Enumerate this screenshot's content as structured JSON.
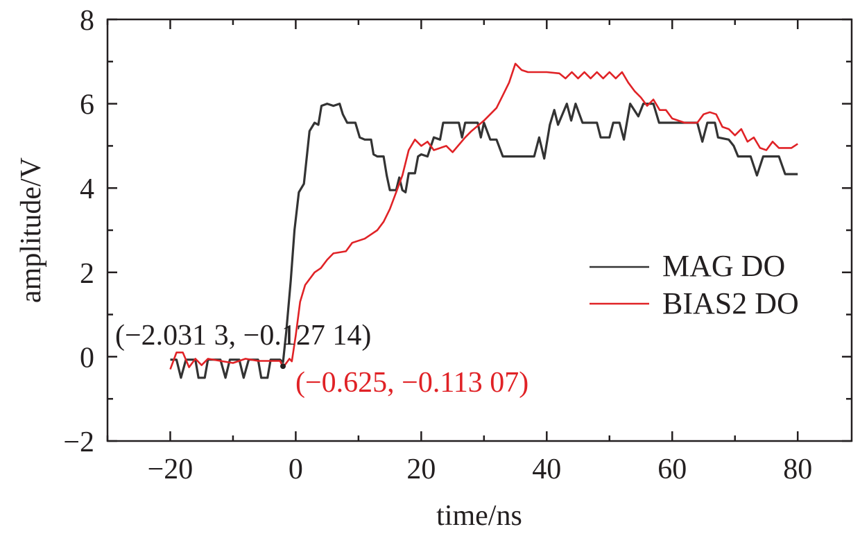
{
  "chart_data": {
    "type": "line",
    "title": "",
    "xlabel": "time/ns",
    "ylabel": "amplitude/V",
    "xlim": [
      -30,
      88.6
    ],
    "ylim": [
      -2,
      8
    ],
    "xticks": [
      -20,
      0,
      20,
      40,
      60,
      80
    ],
    "xtick_labels": [
      "−20",
      "0",
      "20",
      "40",
      "60",
      "80"
    ],
    "yticks": [
      -2,
      0,
      2,
      4,
      6,
      8
    ],
    "ytick_labels": [
      "−2",
      "0",
      "2",
      "4",
      "6",
      "8"
    ],
    "grid": false,
    "legend_position": "center-right",
    "series": [
      {
        "name": "MAG DO",
        "color": "#333333",
        "points": [
          [
            -20,
            -0.07
          ],
          [
            -19,
            -0.07
          ],
          [
            -18.3,
            -0.5
          ],
          [
            -17.5,
            -0.07
          ],
          [
            -16,
            -0.07
          ],
          [
            -15.5,
            -0.5
          ],
          [
            -14.5,
            -0.5
          ],
          [
            -14,
            -0.07
          ],
          [
            -12,
            -0.07
          ],
          [
            -11.2,
            -0.5
          ],
          [
            -10.5,
            -0.07
          ],
          [
            -9,
            -0.07
          ],
          [
            -8.3,
            -0.5
          ],
          [
            -7.5,
            -0.07
          ],
          [
            -6,
            -0.07
          ],
          [
            -5.5,
            -0.5
          ],
          [
            -4.5,
            -0.5
          ],
          [
            -4,
            -0.07
          ],
          [
            -2.5,
            -0.07
          ],
          [
            -2.03,
            -0.13
          ],
          [
            -1.5,
            0.6
          ],
          [
            -0.8,
            1.8
          ],
          [
            -0.2,
            3.0
          ],
          [
            0.5,
            3.9
          ],
          [
            1.3,
            4.1
          ],
          [
            2.2,
            5.35
          ],
          [
            3,
            5.55
          ],
          [
            3.6,
            5.5
          ],
          [
            4.1,
            5.95
          ],
          [
            5,
            6.0
          ],
          [
            6,
            5.95
          ],
          [
            7,
            6.0
          ],
          [
            7.5,
            5.75
          ],
          [
            8.2,
            5.55
          ],
          [
            9.5,
            5.55
          ],
          [
            10.2,
            5.2
          ],
          [
            11,
            5.15
          ],
          [
            12,
            5.15
          ],
          [
            12.4,
            4.8
          ],
          [
            13,
            4.75
          ],
          [
            14,
            4.75
          ],
          [
            14.5,
            4.3
          ],
          [
            15,
            3.95
          ],
          [
            16,
            3.95
          ],
          [
            16.5,
            4.25
          ],
          [
            17,
            3.95
          ],
          [
            17.5,
            3.9
          ],
          [
            18,
            4.35
          ],
          [
            19,
            4.35
          ],
          [
            19.5,
            4.75
          ],
          [
            20,
            4.8
          ],
          [
            21,
            4.75
          ],
          [
            22,
            5.2
          ],
          [
            23,
            5.15
          ],
          [
            23.5,
            5.55
          ],
          [
            26,
            5.55
          ],
          [
            26.5,
            5.2
          ],
          [
            27,
            5.55
          ],
          [
            29,
            5.55
          ],
          [
            29.5,
            5.2
          ],
          [
            30,
            5.55
          ],
          [
            31,
            5.15
          ],
          [
            32,
            5.15
          ],
          [
            33,
            4.75
          ],
          [
            38,
            4.75
          ],
          [
            38.8,
            5.2
          ],
          [
            39.6,
            4.7
          ],
          [
            40.5,
            5.5
          ],
          [
            41.2,
            5.85
          ],
          [
            41.8,
            5.5
          ],
          [
            43.2,
            6.0
          ],
          [
            43.9,
            5.6
          ],
          [
            44.6,
            6.0
          ],
          [
            45.7,
            5.55
          ],
          [
            48,
            5.55
          ],
          [
            48.6,
            5.2
          ],
          [
            50,
            5.2
          ],
          [
            50.6,
            5.55
          ],
          [
            51.6,
            5.55
          ],
          [
            52.3,
            5.15
          ],
          [
            53.3,
            6.0
          ],
          [
            54.6,
            5.7
          ],
          [
            55.4,
            6.0
          ],
          [
            57,
            6.0
          ],
          [
            57.9,
            5.55
          ],
          [
            64,
            5.55
          ],
          [
            64.8,
            5.1
          ],
          [
            65.6,
            5.55
          ],
          [
            66.8,
            5.55
          ],
          [
            67.3,
            5.2
          ],
          [
            69,
            5.15
          ],
          [
            69.8,
            5.0
          ],
          [
            70.5,
            4.75
          ],
          [
            72.5,
            4.75
          ],
          [
            73.5,
            4.3
          ],
          [
            74.5,
            4.75
          ],
          [
            77,
            4.75
          ],
          [
            78,
            4.33
          ],
          [
            80,
            4.33
          ]
        ]
      },
      {
        "name": "BIAS2 DO",
        "color": "#e02226",
        "points": [
          [
            -20,
            -0.3
          ],
          [
            -19,
            0.1
          ],
          [
            -18,
            0.1
          ],
          [
            -17,
            -0.25
          ],
          [
            -16,
            -0.05
          ],
          [
            -15,
            -0.2
          ],
          [
            -14,
            -0.05
          ],
          [
            -12,
            -0.1
          ],
          [
            -10,
            -0.15
          ],
          [
            -8,
            -0.05
          ],
          [
            -6,
            -0.1
          ],
          [
            -4,
            -0.1
          ],
          [
            -2.5,
            -0.1
          ],
          [
            -2,
            -0.25
          ],
          [
            -1,
            -0.05
          ],
          [
            -0.625,
            -0.11
          ],
          [
            0,
            0.5
          ],
          [
            0.7,
            1.3
          ],
          [
            1.5,
            1.7
          ],
          [
            3,
            2.0
          ],
          [
            4,
            2.1
          ],
          [
            5,
            2.3
          ],
          [
            6,
            2.45
          ],
          [
            8,
            2.5
          ],
          [
            9,
            2.7
          ],
          [
            11,
            2.8
          ],
          [
            12,
            2.9
          ],
          [
            13,
            3.0
          ],
          [
            14,
            3.2
          ],
          [
            15,
            3.5
          ],
          [
            16,
            3.9
          ],
          [
            17,
            4.3
          ],
          [
            18,
            4.9
          ],
          [
            19,
            5.15
          ],
          [
            20,
            5.0
          ],
          [
            21,
            5.1
          ],
          [
            22,
            4.9
          ],
          [
            24,
            5.0
          ],
          [
            25,
            4.85
          ],
          [
            27,
            5.2
          ],
          [
            28,
            5.35
          ],
          [
            30,
            5.6
          ],
          [
            32,
            5.9
          ],
          [
            33,
            6.2
          ],
          [
            34,
            6.5
          ],
          [
            35,
            6.95
          ],
          [
            36,
            6.8
          ],
          [
            37,
            6.75
          ],
          [
            40,
            6.75
          ],
          [
            42,
            6.72
          ],
          [
            43,
            6.6
          ],
          [
            44,
            6.75
          ],
          [
            45,
            6.6
          ],
          [
            46,
            6.75
          ],
          [
            47,
            6.6
          ],
          [
            48,
            6.75
          ],
          [
            49,
            6.6
          ],
          [
            50,
            6.75
          ],
          [
            51,
            6.6
          ],
          [
            52,
            6.75
          ],
          [
            53,
            6.5
          ],
          [
            54,
            6.3
          ],
          [
            55,
            6.15
          ],
          [
            56,
            5.95
          ],
          [
            57,
            6.1
          ],
          [
            58,
            5.85
          ],
          [
            59,
            5.85
          ],
          [
            60,
            5.65
          ],
          [
            62,
            5.55
          ],
          [
            64,
            5.55
          ],
          [
            65,
            5.75
          ],
          [
            66,
            5.8
          ],
          [
            67,
            5.75
          ],
          [
            68,
            5.45
          ],
          [
            69,
            5.4
          ],
          [
            70,
            5.25
          ],
          [
            71,
            5.4
          ],
          [
            72,
            5.1
          ],
          [
            73,
            5.2
          ],
          [
            74,
            4.95
          ],
          [
            75,
            4.9
          ],
          [
            76,
            5.1
          ],
          [
            77,
            4.95
          ],
          [
            79,
            4.95
          ],
          [
            80,
            5.05
          ]
        ]
      }
    ],
    "annotations": [
      {
        "text": "(−2.031 3, −0.127 14)",
        "x": -2.0313,
        "y": -0.12714,
        "color": "#231f20"
      },
      {
        "text": "(−0.625, −0.113 07)",
        "x": -0.625,
        "y": -0.11307,
        "color": "#e02226"
      }
    ]
  }
}
